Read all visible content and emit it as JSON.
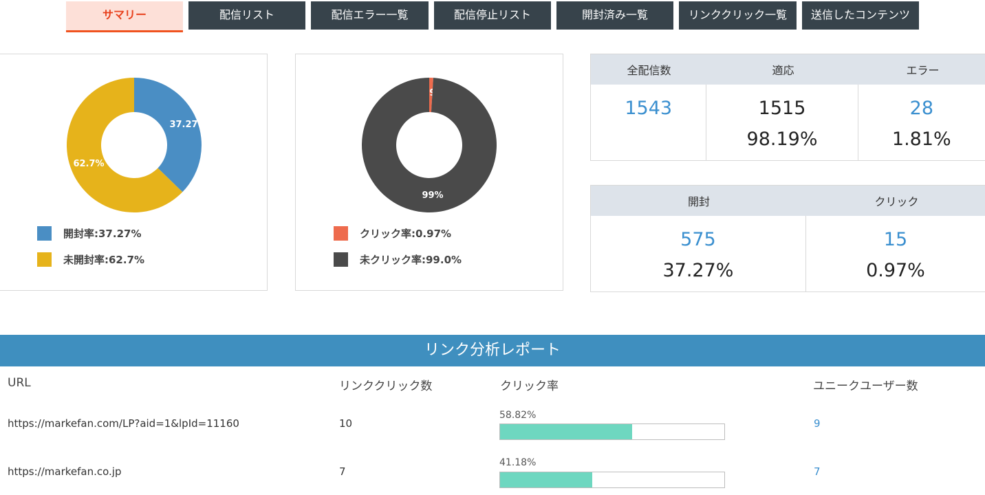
{
  "tabs": [
    {
      "label": "サマリー",
      "active": true
    },
    {
      "label": "配信リスト"
    },
    {
      "label": "配信エラー一覧"
    },
    {
      "label": "配信停止リスト"
    },
    {
      "label": "開封済み一覧"
    },
    {
      "label": "リンククリック一覧"
    },
    {
      "label": "送信したコンテンツ"
    }
  ],
  "open_chart": {
    "slices": [
      {
        "label": "37.27",
        "value": 37.27,
        "color": "#4a8ec4"
      },
      {
        "label": "62.7%",
        "value": 62.73,
        "color": "#e6b31b"
      }
    ],
    "legend": [
      {
        "text": "開封率:37.27%",
        "color": "#4a8ec4"
      },
      {
        "text": "未開封率:62.7%",
        "color": "#e6b31b"
      }
    ]
  },
  "click_chart": {
    "slices": [
      {
        "label": "0.97%",
        "value": 0.97,
        "color": "#ee6b4d"
      },
      {
        "label": "99%",
        "value": 99.03,
        "color": "#4a4a4a"
      }
    ],
    "legend": [
      {
        "text": "クリック率:0.97%",
        "color": "#ee6b4d"
      },
      {
        "text": "未クリック率:99.0%",
        "color": "#4a4a4a"
      }
    ]
  },
  "delivery_stats": {
    "headers": [
      "全配信数",
      "適応",
      "エラー"
    ],
    "total": "1543",
    "success_count": "1515",
    "success_rate": "98.19%",
    "error_count": "28",
    "error_rate": "1.81%"
  },
  "engagement_stats": {
    "headers": [
      "開封",
      "クリック"
    ],
    "open_count": "575",
    "open_rate": "37.27%",
    "click_count": "15",
    "click_rate": "0.97%"
  },
  "report": {
    "title": "リンク分析レポート",
    "columns": [
      "URL",
      "リンククリック数",
      "クリック率",
      "ユニークユーザー数"
    ],
    "rows": [
      {
        "url": "https://markefan.com/LP?aid=1&lpId=11160",
        "clicks": "10",
        "rate_label": "58.82%",
        "rate": 58.82,
        "unique": "9"
      },
      {
        "url": "https://markefan.co.jp",
        "clicks": "7",
        "rate_label": "41.18%",
        "rate": 41.18,
        "unique": "7"
      }
    ]
  },
  "colors": {
    "tab_bg": "#37434b",
    "tab_active_bg": "#fde0d8",
    "tab_active_text": "#e8401c",
    "report_bar": "#3f8fbf",
    "accent_blue": "#3a8fcf",
    "rate_fill": "#6ed7c0"
  }
}
